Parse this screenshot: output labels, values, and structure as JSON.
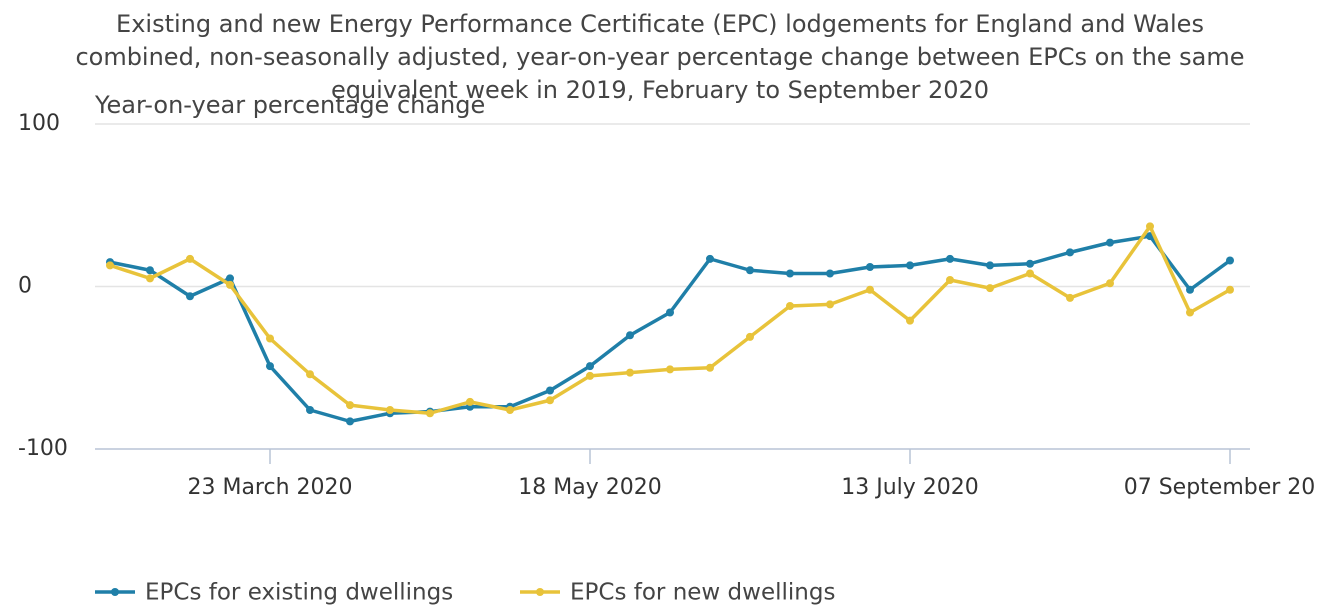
{
  "chart_data": {
    "type": "line",
    "title": "Existing and new Energy Performance Certificate (EPC) lodgements for England and Wales combined, non-seasonally adjusted, year-on-year percentage change between EPCs on the same equivalent week in 2019, February to September 2020",
    "y_label": "Year-on-year percentage change",
    "categories": [
      null,
      null,
      null,
      null,
      "23 March 2020",
      null,
      null,
      null,
      null,
      null,
      null,
      null,
      "18 May 2020",
      null,
      null,
      null,
      null,
      null,
      null,
      null,
      "13 July 2020",
      null,
      null,
      null,
      null,
      null,
      null,
      null,
      "07 September 20..."
    ],
    "series": [
      {
        "name": "EPCs for existing dwellings",
        "color": "#1f7fa8",
        "values": [
          15,
          10,
          -6,
          5,
          -49,
          -76,
          -83,
          -78,
          -77,
          -74,
          -74,
          -64,
          -49,
          -30,
          -16,
          17,
          10,
          8,
          8,
          12,
          13,
          17,
          13,
          14,
          21,
          27,
          31,
          -2,
          16
        ]
      },
      {
        "name": "EPCs for new dwellings",
        "color": "#e8c33a",
        "values": [
          13,
          5,
          17,
          1,
          -32,
          -54,
          -73,
          -76,
          -78,
          -71,
          -76,
          -70,
          -55,
          -53,
          -51,
          -50,
          -31,
          -12,
          -11,
          -2,
          -21,
          4,
          -1,
          8,
          -7,
          2,
          37,
          -16,
          -2
        ]
      }
    ],
    "ylim": [
      -100,
      100
    ],
    "yticks": [
      -100,
      0,
      100
    ],
    "grid": true
  }
}
